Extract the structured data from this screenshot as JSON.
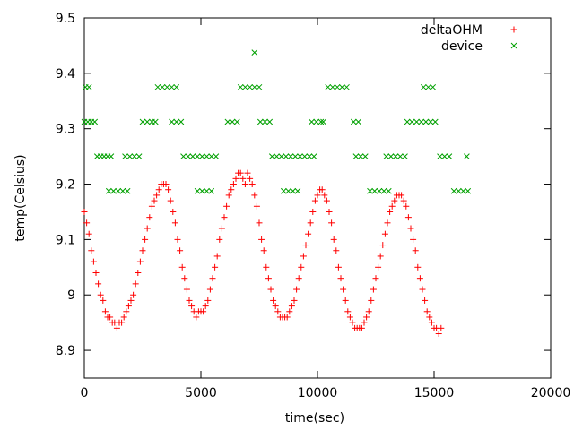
{
  "chart_data": {
    "type": "scatter",
    "title": "",
    "xlabel": "time(sec)",
    "ylabel": "temp(Celsius)",
    "xlim": [
      0,
      20000
    ],
    "ylim": [
      8.85,
      9.5
    ],
    "xticks": [
      0,
      5000,
      10000,
      15000,
      20000
    ],
    "xtick_labels": [
      "0",
      "5000",
      "10000",
      "15000",
      "20000"
    ],
    "yticks": [
      8.9,
      9.0,
      9.1,
      9.2,
      9.3,
      9.4,
      9.5
    ],
    "ytick_labels": [
      "8.9",
      "9",
      "9.1",
      "9.2",
      "9.3",
      "9.4",
      "9.5"
    ],
    "grid": false,
    "legend": "top-right",
    "series": [
      {
        "name": "deltaOHM",
        "marker": "plus",
        "color": "#ff0000",
        "points": [
          [
            0,
            9.15
          ],
          [
            100,
            9.13
          ],
          [
            200,
            9.11
          ],
          [
            300,
            9.08
          ],
          [
            400,
            9.06
          ],
          [
            500,
            9.04
          ],
          [
            600,
            9.02
          ],
          [
            700,
            9.0
          ],
          [
            800,
            8.99
          ],
          [
            900,
            8.97
          ],
          [
            1000,
            8.96
          ],
          [
            1100,
            8.96
          ],
          [
            1200,
            8.95
          ],
          [
            1300,
            8.95
          ],
          [
            1400,
            8.94
          ],
          [
            1500,
            8.95
          ],
          [
            1600,
            8.95
          ],
          [
            1700,
            8.96
          ],
          [
            1800,
            8.97
          ],
          [
            1900,
            8.98
          ],
          [
            2000,
            8.99
          ],
          [
            2100,
            9.0
          ],
          [
            2200,
            9.02
          ],
          [
            2300,
            9.04
          ],
          [
            2400,
            9.06
          ],
          [
            2500,
            9.08
          ],
          [
            2600,
            9.1
          ],
          [
            2700,
            9.12
          ],
          [
            2800,
            9.14
          ],
          [
            2900,
            9.16
          ],
          [
            3000,
            9.17
          ],
          [
            3100,
            9.18
          ],
          [
            3200,
            9.19
          ],
          [
            3300,
            9.2
          ],
          [
            3400,
            9.2
          ],
          [
            3500,
            9.2
          ],
          [
            3600,
            9.19
          ],
          [
            3700,
            9.17
          ],
          [
            3800,
            9.15
          ],
          [
            3900,
            9.13
          ],
          [
            4000,
            9.1
          ],
          [
            4100,
            9.08
          ],
          [
            4200,
            9.05
          ],
          [
            4300,
            9.03
          ],
          [
            4400,
            9.01
          ],
          [
            4500,
            8.99
          ],
          [
            4600,
            8.98
          ],
          [
            4700,
            8.97
          ],
          [
            4800,
            8.96
          ],
          [
            4900,
            8.97
          ],
          [
            5000,
            8.97
          ],
          [
            5100,
            8.97
          ],
          [
            5200,
            8.98
          ],
          [
            5300,
            8.99
          ],
          [
            5400,
            9.01
          ],
          [
            5500,
            9.03
          ],
          [
            5600,
            9.05
          ],
          [
            5700,
            9.07
          ],
          [
            5800,
            9.1
          ],
          [
            5900,
            9.12
          ],
          [
            6000,
            9.14
          ],
          [
            6100,
            9.16
          ],
          [
            6200,
            9.18
          ],
          [
            6300,
            9.19
          ],
          [
            6400,
            9.2
          ],
          [
            6500,
            9.21
          ],
          [
            6600,
            9.22
          ],
          [
            6700,
            9.22
          ],
          [
            6800,
            9.21
          ],
          [
            6900,
            9.2
          ],
          [
            7000,
            9.22
          ],
          [
            7100,
            9.21
          ],
          [
            7200,
            9.2
          ],
          [
            7300,
            9.18
          ],
          [
            7400,
            9.16
          ],
          [
            7500,
            9.13
          ],
          [
            7600,
            9.1
          ],
          [
            7700,
            9.08
          ],
          [
            7800,
            9.05
          ],
          [
            7900,
            9.03
          ],
          [
            8000,
            9.01
          ],
          [
            8100,
            8.99
          ],
          [
            8200,
            8.98
          ],
          [
            8300,
            8.97
          ],
          [
            8400,
            8.96
          ],
          [
            8500,
            8.96
          ],
          [
            8600,
            8.96
          ],
          [
            8700,
            8.96
          ],
          [
            8800,
            8.97
          ],
          [
            8900,
            8.98
          ],
          [
            9000,
            8.99
          ],
          [
            9100,
            9.01
          ],
          [
            9200,
            9.03
          ],
          [
            9300,
            9.05
          ],
          [
            9400,
            9.07
          ],
          [
            9500,
            9.09
          ],
          [
            9600,
            9.11
          ],
          [
            9700,
            9.13
          ],
          [
            9800,
            9.15
          ],
          [
            9900,
            9.17
          ],
          [
            10000,
            9.18
          ],
          [
            10100,
            9.19
          ],
          [
            10200,
            9.19
          ],
          [
            10300,
            9.18
          ],
          [
            10400,
            9.17
          ],
          [
            10500,
            9.15
          ],
          [
            10600,
            9.13
          ],
          [
            10700,
            9.1
          ],
          [
            10800,
            9.08
          ],
          [
            10900,
            9.05
          ],
          [
            11000,
            9.03
          ],
          [
            11100,
            9.01
          ],
          [
            11200,
            8.99
          ],
          [
            11300,
            8.97
          ],
          [
            11400,
            8.96
          ],
          [
            11500,
            8.95
          ],
          [
            11600,
            8.94
          ],
          [
            11700,
            8.94
          ],
          [
            11800,
            8.94
          ],
          [
            11900,
            8.94
          ],
          [
            12000,
            8.95
          ],
          [
            12100,
            8.96
          ],
          [
            12200,
            8.97
          ],
          [
            12300,
            8.99
          ],
          [
            12400,
            9.01
          ],
          [
            12500,
            9.03
          ],
          [
            12600,
            9.05
          ],
          [
            12700,
            9.07
          ],
          [
            12800,
            9.09
          ],
          [
            12900,
            9.11
          ],
          [
            13000,
            9.13
          ],
          [
            13100,
            9.15
          ],
          [
            13200,
            9.16
          ],
          [
            13300,
            9.17
          ],
          [
            13400,
            9.18
          ],
          [
            13500,
            9.18
          ],
          [
            13600,
            9.18
          ],
          [
            13700,
            9.17
          ],
          [
            13800,
            9.16
          ],
          [
            13900,
            9.14
          ],
          [
            14000,
            9.12
          ],
          [
            14100,
            9.1
          ],
          [
            14200,
            9.08
          ],
          [
            14300,
            9.05
          ],
          [
            14400,
            9.03
          ],
          [
            14500,
            9.01
          ],
          [
            14600,
            8.99
          ],
          [
            14700,
            8.97
          ],
          [
            14800,
            8.96
          ],
          [
            14900,
            8.95
          ],
          [
            15000,
            8.94
          ],
          [
            15100,
            8.94
          ],
          [
            15200,
            8.93
          ],
          [
            15300,
            8.94
          ]
        ]
      },
      {
        "name": "device",
        "marker": "cross",
        "color": "#00a000",
        "points": [
          [
            50,
            9.375
          ],
          [
            200,
            9.375
          ],
          [
            0,
            9.3125
          ],
          [
            150,
            9.3125
          ],
          [
            300,
            9.3125
          ],
          [
            450,
            9.3125
          ],
          [
            550,
            9.25
          ],
          [
            700,
            9.25
          ],
          [
            850,
            9.25
          ],
          [
            1000,
            9.25
          ],
          [
            1150,
            9.25
          ],
          [
            1050,
            9.1875
          ],
          [
            1250,
            9.1875
          ],
          [
            1450,
            9.1875
          ],
          [
            1650,
            9.1875
          ],
          [
            1850,
            9.1875
          ],
          [
            1750,
            9.25
          ],
          [
            1950,
            9.25
          ],
          [
            2150,
            9.25
          ],
          [
            2350,
            9.25
          ],
          [
            2500,
            9.3125
          ],
          [
            2700,
            9.3125
          ],
          [
            2900,
            9.3125
          ],
          [
            3050,
            9.3125
          ],
          [
            3150,
            9.375
          ],
          [
            3350,
            9.375
          ],
          [
            3550,
            9.375
          ],
          [
            3750,
            9.375
          ],
          [
            3950,
            9.375
          ],
          [
            3750,
            9.3125
          ],
          [
            3950,
            9.3125
          ],
          [
            4150,
            9.3125
          ],
          [
            4250,
            9.25
          ],
          [
            4450,
            9.25
          ],
          [
            4650,
            9.25
          ],
          [
            4850,
            9.25
          ],
          [
            5050,
            9.25
          ],
          [
            5250,
            9.25
          ],
          [
            5450,
            9.25
          ],
          [
            5650,
            9.25
          ],
          [
            4850,
            9.1875
          ],
          [
            5050,
            9.1875
          ],
          [
            5250,
            9.1875
          ],
          [
            5450,
            9.1875
          ],
          [
            6150,
            9.3125
          ],
          [
            6350,
            9.3125
          ],
          [
            6550,
            9.3125
          ],
          [
            6700,
            9.375
          ],
          [
            6900,
            9.375
          ],
          [
            7100,
            9.375
          ],
          [
            7300,
            9.375
          ],
          [
            7500,
            9.375
          ],
          [
            7300,
            9.4375
          ],
          [
            7550,
            9.3125
          ],
          [
            7750,
            9.3125
          ],
          [
            7950,
            9.3125
          ],
          [
            8050,
            9.25
          ],
          [
            8250,
            9.25
          ],
          [
            8450,
            9.25
          ],
          [
            8650,
            9.25
          ],
          [
            8850,
            9.25
          ],
          [
            9050,
            9.25
          ],
          [
            9250,
            9.25
          ],
          [
            9450,
            9.25
          ],
          [
            9650,
            9.25
          ],
          [
            9850,
            9.25
          ],
          [
            8550,
            9.1875
          ],
          [
            8750,
            9.1875
          ],
          [
            8950,
            9.1875
          ],
          [
            9150,
            9.1875
          ],
          [
            9750,
            9.3125
          ],
          [
            9950,
            9.3125
          ],
          [
            10150,
            9.3125
          ],
          [
            10250,
            9.3125
          ],
          [
            10450,
            9.375
          ],
          [
            10650,
            9.375
          ],
          [
            10850,
            9.375
          ],
          [
            11050,
            9.375
          ],
          [
            11250,
            9.375
          ],
          [
            11550,
            9.3125
          ],
          [
            11750,
            9.3125
          ],
          [
            11650,
            9.25
          ],
          [
            11850,
            9.25
          ],
          [
            12050,
            9.25
          ],
          [
            12250,
            9.1875
          ],
          [
            12450,
            9.1875
          ],
          [
            12650,
            9.1875
          ],
          [
            12850,
            9.1875
          ],
          [
            13050,
            9.1875
          ],
          [
            12950,
            9.25
          ],
          [
            13150,
            9.25
          ],
          [
            13350,
            9.25
          ],
          [
            13550,
            9.25
          ],
          [
            13750,
            9.25
          ],
          [
            13850,
            9.3125
          ],
          [
            14050,
            9.3125
          ],
          [
            14250,
            9.3125
          ],
          [
            14450,
            9.3125
          ],
          [
            14650,
            9.3125
          ],
          [
            14850,
            9.3125
          ],
          [
            15050,
            9.3125
          ],
          [
            14550,
            9.375
          ],
          [
            14750,
            9.375
          ],
          [
            14950,
            9.375
          ],
          [
            15250,
            9.25
          ],
          [
            15450,
            9.25
          ],
          [
            15650,
            9.25
          ],
          [
            15850,
            9.1875
          ],
          [
            16050,
            9.1875
          ],
          [
            16250,
            9.1875
          ],
          [
            16450,
            9.1875
          ],
          [
            16400,
            9.25
          ]
        ]
      }
    ]
  }
}
